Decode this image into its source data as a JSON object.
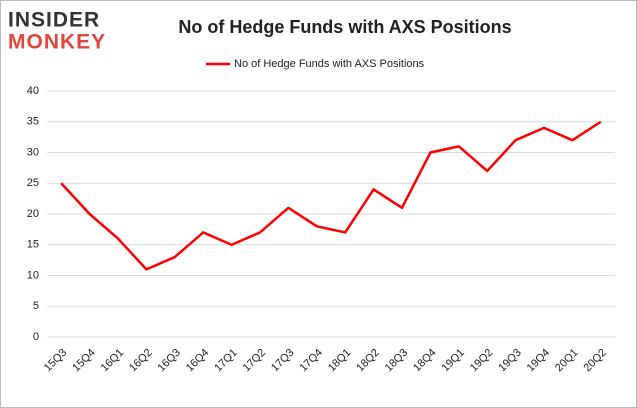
{
  "logo": {
    "top": "INSIDER",
    "bottom": "MONKEY"
  },
  "chart_data": {
    "type": "line",
    "title": "No of Hedge Funds with AXS Positions",
    "categories": [
      "15Q3",
      "15Q4",
      "16Q1",
      "16Q2",
      "16Q3",
      "16Q4",
      "17Q1",
      "17Q2",
      "17Q3",
      "17Q4",
      "18Q1",
      "18Q2",
      "18Q3",
      "18Q4",
      "19Q1",
      "19Q2",
      "19Q3",
      "19Q4",
      "20Q1",
      "20Q2"
    ],
    "series": [
      {
        "name": "No of Hedge Funds with AXS Positions",
        "color": "#ff0000",
        "values": [
          25,
          20,
          16,
          11,
          13,
          17,
          15,
          17,
          21,
          18,
          17,
          24,
          21,
          30,
          31,
          27,
          32,
          34,
          32,
          35
        ]
      }
    ],
    "ylim": [
      0,
      40
    ],
    "yticks": [
      0,
      5,
      10,
      15,
      20,
      25,
      30,
      35,
      40
    ],
    "grid": true,
    "legend": "top"
  }
}
